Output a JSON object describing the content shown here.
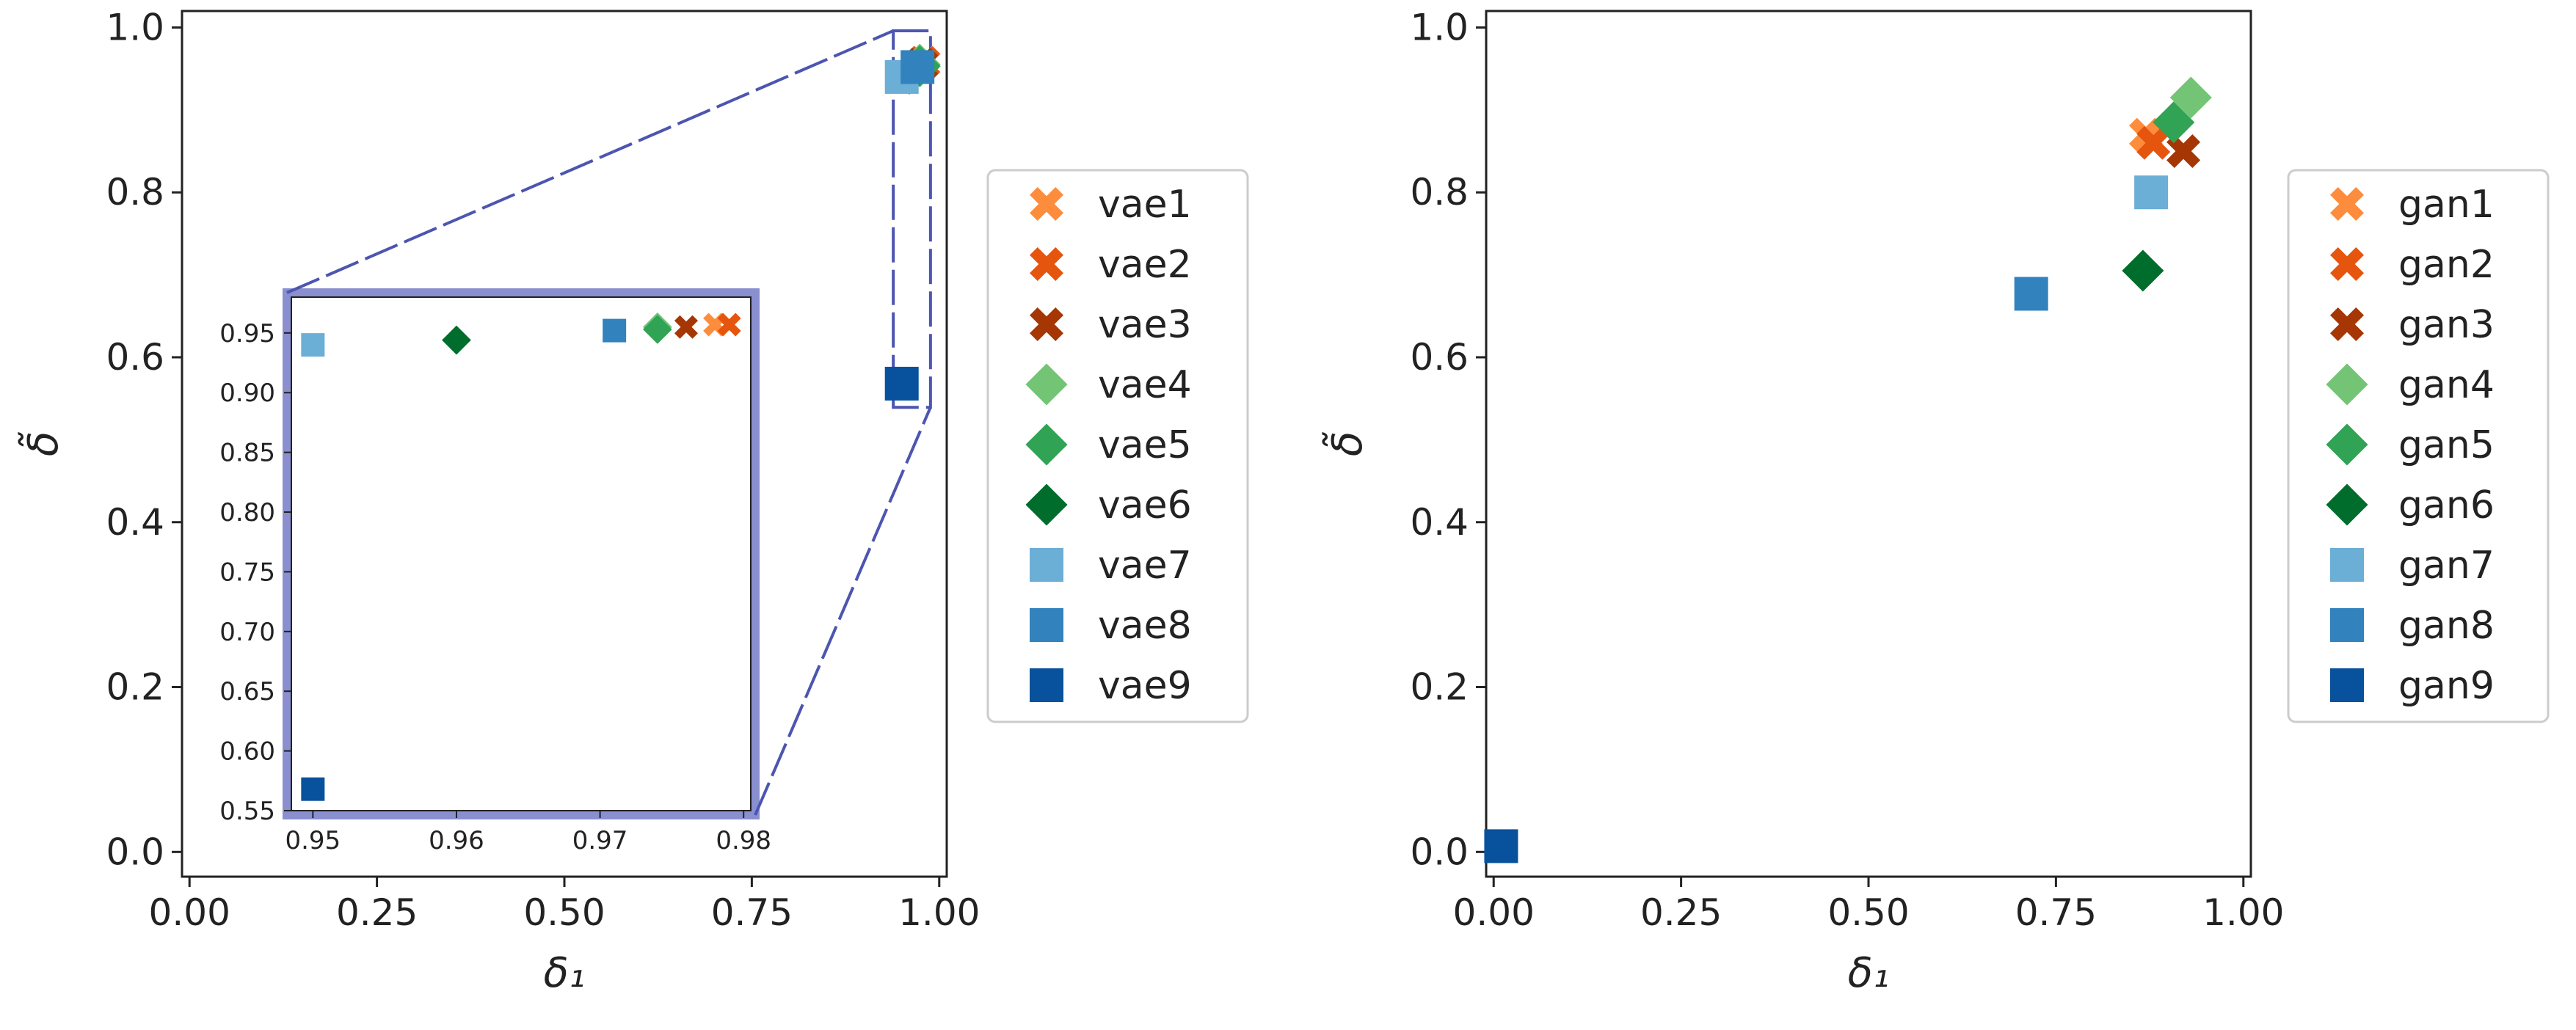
{
  "chart_data": [
    {
      "panel": "left",
      "type": "scatter",
      "xlabel": "δ₁",
      "ylabel": "δ̃",
      "xlim": [
        -0.01,
        1.01
      ],
      "ylim": [
        -0.03,
        1.02
      ],
      "xticks": [
        "0.00",
        "0.25",
        "0.50",
        "0.75",
        "1.00"
      ],
      "yticks": [
        "0.0",
        "0.2",
        "0.4",
        "0.6",
        "0.8",
        "1.0"
      ],
      "legend_position": "outside-right",
      "series": [
        {
          "name": "vae1",
          "marker": "X",
          "color": "#fd8d3c",
          "x": 0.978,
          "y": 0.957
        },
        {
          "name": "vae2",
          "marker": "X",
          "color": "#e6550d",
          "x": 0.979,
          "y": 0.957
        },
        {
          "name": "vae3",
          "marker": "X",
          "color": "#a63603",
          "x": 0.976,
          "y": 0.955
        },
        {
          "name": "vae4",
          "marker": "D",
          "color": "#74c476",
          "x": 0.974,
          "y": 0.955
        },
        {
          "name": "vae5",
          "marker": "D",
          "color": "#31a354",
          "x": 0.974,
          "y": 0.953
        },
        {
          "name": "vae6",
          "marker": "D",
          "color": "#006d2c",
          "x": 0.96,
          "y": 0.944
        },
        {
          "name": "vae7",
          "marker": "s",
          "color": "#6baed6",
          "x": 0.95,
          "y": 0.94
        },
        {
          "name": "vae8",
          "marker": "s",
          "color": "#3182bd",
          "x": 0.971,
          "y": 0.952
        },
        {
          "name": "vae9",
          "marker": "s",
          "color": "#08519c",
          "x": 0.95,
          "y": 0.568
        }
      ],
      "inset": {
        "xlim": [
          0.9485,
          0.9805
        ],
        "ylim": [
          0.55,
          0.98
        ],
        "xticks": [
          "0.95",
          "0.96",
          "0.97",
          "0.98"
        ],
        "yticks": [
          "0.55",
          "0.60",
          "0.65",
          "0.70",
          "0.75",
          "0.80",
          "0.85",
          "0.90",
          "0.95"
        ],
        "zoom_region": {
          "x": [
            0.9485,
            0.9805
          ],
          "y": [
            0.55,
            0.98
          ]
        }
      }
    },
    {
      "panel": "right",
      "type": "scatter",
      "xlabel": "δ₁",
      "ylabel": "δ̃",
      "xlim": [
        -0.01,
        1.01
      ],
      "ylim": [
        -0.03,
        1.02
      ],
      "xticks": [
        "0.00",
        "0.25",
        "0.50",
        "0.75",
        "1.00"
      ],
      "yticks": [
        "0.0",
        "0.2",
        "0.4",
        "0.6",
        "0.8",
        "1.0"
      ],
      "legend_position": "outside-right",
      "series": [
        {
          "name": "gan1",
          "marker": "X",
          "color": "#fd8d3c",
          "x": 0.87,
          "y": 0.87
        },
        {
          "name": "gan2",
          "marker": "X",
          "color": "#e6550d",
          "x": 0.88,
          "y": 0.86
        },
        {
          "name": "gan3",
          "marker": "X",
          "color": "#a63603",
          "x": 0.92,
          "y": 0.85
        },
        {
          "name": "gan4",
          "marker": "D",
          "color": "#74c476",
          "x": 0.93,
          "y": 0.915
        },
        {
          "name": "gan5",
          "marker": "D",
          "color": "#31a354",
          "x": 0.907,
          "y": 0.885
        },
        {
          "name": "gan6",
          "marker": "D",
          "color": "#006d2c",
          "x": 0.866,
          "y": 0.705
        },
        {
          "name": "gan7",
          "marker": "s",
          "color": "#6baed6",
          "x": 0.877,
          "y": 0.8
        },
        {
          "name": "gan8",
          "marker": "s",
          "color": "#3182bd",
          "x": 0.717,
          "y": 0.677
        },
        {
          "name": "gan9",
          "marker": "s",
          "color": "#08519c",
          "x": 0.01,
          "y": 0.007
        }
      ]
    }
  ]
}
